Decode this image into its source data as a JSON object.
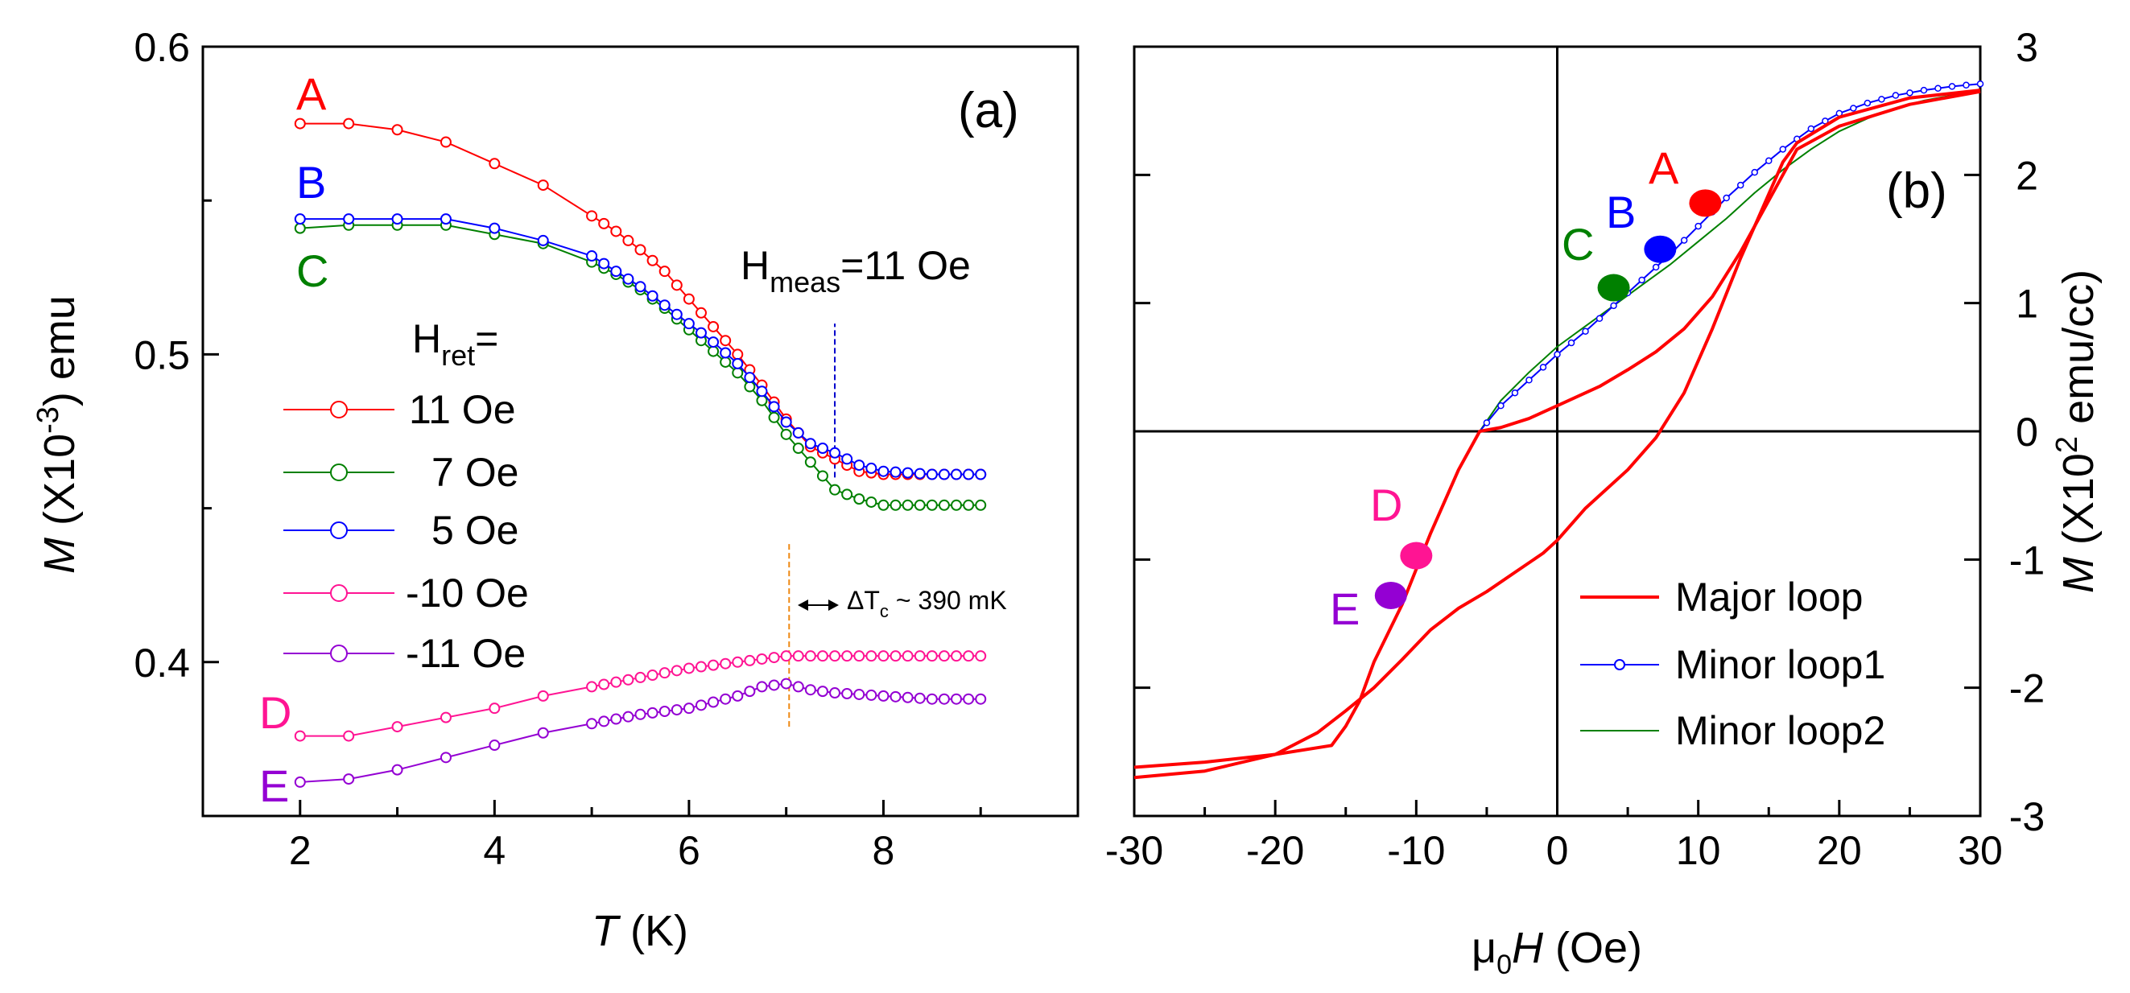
{
  "chart_data": [
    {
      "type": "line",
      "panel_label": "(a)",
      "xlabel_italic": "T",
      "xlabel_rest": " (K)",
      "ylabel_italic": "M",
      "ylabel_pre": " (X10",
      "ylabel_sup": "-3",
      "ylabel_post": ") emu",
      "xlim": [
        1,
        10
      ],
      "ylim": [
        0.35,
        0.6
      ],
      "xticks": [
        2,
        4,
        6,
        8
      ],
      "xtick_labels": [
        "2",
        "4",
        "6",
        "8"
      ],
      "yticks": [
        0.4,
        0.5,
        0.6
      ],
      "ytick_labels": [
        "0.4",
        "0.5",
        "0.6"
      ],
      "legend_title_main": "H",
      "legend_title_sub": "ret",
      "legend_title_eq": "=",
      "hmeas_main": "H",
      "hmeas_sub": "meas",
      "hmeas_value": "=11 Oe",
      "delta_pre": "ΔT",
      "delta_sub": "c",
      "delta_post": " ~ 390 mK",
      "vlines": [
        {
          "x": 7.5,
          "y_range": [
            0.46,
            0.51
          ],
          "color": "#0000cc"
        },
        {
          "x": 7.03,
          "y_range": [
            0.379,
            0.439
          ],
          "color": "#ee8811"
        }
      ],
      "series": [
        {
          "name": "11 Oe",
          "letter": "A",
          "color": "#ff0000",
          "x": [
            2.0,
            2.5,
            3.0,
            3.5,
            4.0,
            4.5,
            5.0,
            5.25,
            5.5,
            5.75,
            6.0,
            6.25,
            6.5,
            6.75,
            7.0,
            7.25,
            7.5,
            7.75,
            8.0,
            8.5,
            9.0
          ],
          "y": [
            0.575,
            0.575,
            0.573,
            0.569,
            0.562,
            0.555,
            0.545,
            0.54,
            0.534,
            0.527,
            0.518,
            0.509,
            0.5,
            0.49,
            0.479,
            0.47,
            0.466,
            0.462,
            0.461,
            0.461,
            0.461
          ]
        },
        {
          "name": "7 Oe",
          "letter": "C",
          "color": "#008000",
          "x": [
            2.0,
            2.5,
            3.0,
            3.5,
            4.0,
            4.5,
            5.0,
            5.25,
            5.5,
            5.75,
            6.0,
            6.25,
            6.5,
            6.75,
            7.0,
            7.25,
            7.5,
            7.75,
            8.0,
            8.5,
            9.0
          ],
          "y": [
            0.541,
            0.542,
            0.542,
            0.542,
            0.539,
            0.536,
            0.53,
            0.526,
            0.521,
            0.515,
            0.508,
            0.501,
            0.494,
            0.485,
            0.474,
            0.465,
            0.456,
            0.453,
            0.451,
            0.451,
            0.451
          ]
        },
        {
          "name": "5 Oe",
          "letter": "B",
          "color": "#0000ff",
          "x": [
            2.0,
            2.5,
            3.0,
            3.5,
            4.0,
            4.5,
            5.0,
            5.25,
            5.5,
            5.75,
            6.0,
            6.25,
            6.5,
            6.75,
            7.0,
            7.25,
            7.5,
            7.75,
            8.0,
            8.5,
            9.0
          ],
          "y": [
            0.544,
            0.544,
            0.544,
            0.544,
            0.541,
            0.537,
            0.532,
            0.527,
            0.522,
            0.516,
            0.51,
            0.504,
            0.497,
            0.488,
            0.478,
            0.471,
            0.468,
            0.464,
            0.462,
            0.461,
            0.461
          ]
        },
        {
          "name": "-10 Oe",
          "letter": "D",
          "color": "#ff1493",
          "x": [
            2.0,
            2.5,
            3.0,
            3.5,
            4.0,
            4.5,
            5.0,
            5.5,
            6.0,
            6.5,
            7.0,
            7.25,
            7.5,
            8.0,
            8.5,
            9.0
          ],
          "y": [
            0.376,
            0.376,
            0.379,
            0.382,
            0.385,
            0.389,
            0.392,
            0.395,
            0.398,
            0.4,
            0.402,
            0.402,
            0.402,
            0.402,
            0.402,
            0.402
          ]
        },
        {
          "name": "-11 Oe",
          "letter": "E",
          "color": "#9400d3",
          "x": [
            2.0,
            2.5,
            3.0,
            3.5,
            4.0,
            4.5,
            5.0,
            5.5,
            6.0,
            6.5,
            6.75,
            7.0,
            7.25,
            7.5,
            8.0,
            8.5,
            9.0
          ],
          "y": [
            0.361,
            0.362,
            0.365,
            0.369,
            0.373,
            0.377,
            0.38,
            0.383,
            0.385,
            0.389,
            0.392,
            0.393,
            0.391,
            0.39,
            0.389,
            0.388,
            0.388
          ]
        }
      ]
    },
    {
      "type": "line",
      "panel_label": "(b)",
      "xlabel_mu": "μ",
      "xlabel_mu_sub": "0",
      "xlabel_italic": "H",
      "xlabel_rest": " (Oe)",
      "ylabel_italic": "M",
      "ylabel_pre": " (X10",
      "ylabel_sup": "2",
      "ylabel_post": " emu/cc)",
      "xlim": [
        -30,
        30
      ],
      "ylim": [
        -3,
        3
      ],
      "xticks": [
        -30,
        -20,
        -10,
        0,
        10,
        20,
        30
      ],
      "xtick_labels": [
        "-30",
        "-20",
        "-10",
        "0",
        "10",
        "20",
        "30"
      ],
      "yticks": [
        -3,
        -2,
        -1,
        0,
        1,
        2,
        3
      ],
      "ytick_labels": [
        "-3",
        "-2",
        "-1",
        "0",
        "1",
        "2",
        "3"
      ],
      "series": [
        {
          "name": "Major loop",
          "color": "#ff0000",
          "branches": [
            {
              "x": [
                30,
                25,
                20,
                17,
                16,
                15,
                14,
                13,
                11,
                9,
                7,
                5,
                3,
                0,
                -2,
                -4,
                -5.5,
                -7,
                -9,
                -11,
                -13,
                -14,
                -15,
                -16,
                -20,
                -25,
                -30
              ],
              "y": [
                2.65,
                2.55,
                2.38,
                2.2,
                2.0,
                1.8,
                1.6,
                1.4,
                1.05,
                0.8,
                0.62,
                0.48,
                0.35,
                0.2,
                0.1,
                0.03,
                0.0,
                -0.3,
                -0.8,
                -1.35,
                -1.8,
                -2.1,
                -2.3,
                -2.45,
                -2.52,
                -2.58,
                -2.62
              ]
            },
            {
              "x": [
                -30,
                -25,
                -20,
                -17,
                -15,
                -13,
                -11,
                -9,
                -7,
                -5,
                -3,
                -1,
                0,
                2,
                5,
                7,
                9,
                11,
                13,
                15,
                16,
                17,
                20,
                25,
                30
              ],
              "y": [
                -2.7,
                -2.65,
                -2.52,
                -2.35,
                -2.18,
                -2.0,
                -1.78,
                -1.55,
                -1.38,
                -1.25,
                -1.1,
                -0.95,
                -0.85,
                -0.6,
                -0.3,
                -0.05,
                0.3,
                0.8,
                1.35,
                1.85,
                2.1,
                2.25,
                2.45,
                2.6,
                2.66
              ]
            }
          ]
        },
        {
          "name": "Minor loop1",
          "color": "#0000ff",
          "x": [
            -5.5,
            -4,
            -2,
            0,
            2,
            4,
            6,
            8,
            10,
            12,
            14,
            16,
            18,
            20,
            22,
            24,
            26,
            28,
            30
          ],
          "y": [
            0.0,
            0.2,
            0.4,
            0.6,
            0.78,
            0.98,
            1.18,
            1.38,
            1.6,
            1.82,
            2.02,
            2.2,
            2.36,
            2.48,
            2.56,
            2.62,
            2.66,
            2.69,
            2.71
          ]
        },
        {
          "name": "Minor loop2",
          "color": "#008000",
          "x": [
            -5.5,
            -4,
            -2,
            0,
            2,
            4,
            6,
            8,
            10,
            12,
            14,
            16,
            18,
            20,
            22,
            24,
            26,
            28,
            30
          ],
          "y": [
            0.0,
            0.24,
            0.46,
            0.66,
            0.82,
            0.98,
            1.14,
            1.3,
            1.48,
            1.66,
            1.86,
            2.04,
            2.2,
            2.34,
            2.44,
            2.52,
            2.58,
            2.62,
            2.65
          ]
        }
      ],
      "markers": [
        {
          "letter": "A",
          "x": 10.5,
          "y": 1.78,
          "color": "#ff0000"
        },
        {
          "letter": "B",
          "x": 7.3,
          "y": 1.42,
          "color": "#0000ff"
        },
        {
          "letter": "C",
          "x": 4.0,
          "y": 1.12,
          "color": "#008000"
        },
        {
          "letter": "D",
          "x": -10.0,
          "y": -0.97,
          "color": "#ff1493"
        },
        {
          "letter": "E",
          "x": -11.8,
          "y": -1.28,
          "color": "#9400d3"
        }
      ]
    }
  ]
}
